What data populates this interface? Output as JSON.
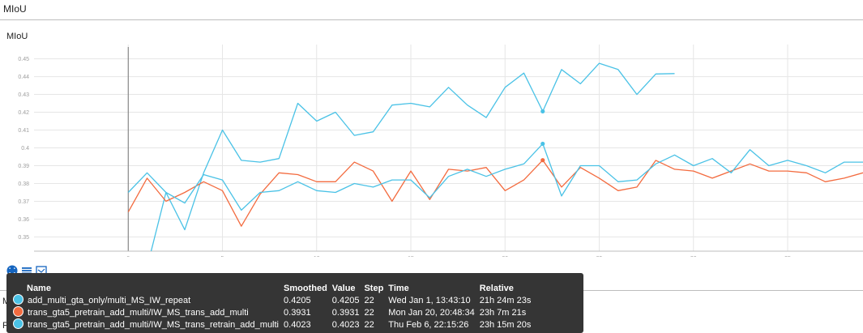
{
  "section": {
    "title": "MIoU"
  },
  "card": {
    "title": "MIoU"
  },
  "below": {
    "text_1": "M",
    "text_2": "F"
  },
  "colors": {
    "series_blue": "#4ac2e6",
    "series_orange": "#f36b3f",
    "axis_line": "#757575",
    "grid": "#e6e6e6",
    "tooltip_bg": "#353535",
    "toolbar_icon": "#1565c0"
  },
  "toolbar": {
    "icons": [
      "fit-domain-icon",
      "data-table-icon",
      "expand-chart-icon"
    ]
  },
  "tooltip": {
    "headers": {
      "name": "Name",
      "smoothed": "Smoothed",
      "value": "Value",
      "step": "Step",
      "time": "Time",
      "relative": "Relative"
    },
    "rows": [
      {
        "color": "#4ac2e6",
        "name": "add_multi_gta_only/multi_MS_IW_repeat",
        "smoothed": "0.4205",
        "value": "0.4205",
        "step": "22",
        "time": "Wed Jan 1, 13:43:10",
        "relative": "21h 24m 23s"
      },
      {
        "color": "#f36b3f",
        "name": "trans_gta5_pretrain_add_multi/IW_MS_trans_add_multi",
        "smoothed": "0.3931",
        "value": "0.3931",
        "step": "22",
        "time": "Mon Jan 20, 20:48:34",
        "relative": "23h 7m 21s"
      },
      {
        "color": "#4ac2e6",
        "name": "trans_gta5_pretrain_add_multi/IW_MS_trans_retrain_add_multi",
        "smoothed": "0.4023",
        "value": "0.4023",
        "step": "22",
        "time": "Thu Feb 6, 22:15:26",
        "relative": "23h 15m 20s"
      }
    ]
  },
  "chart_data": {
    "type": "line",
    "title": "MIoU",
    "xlim": [
      -5,
      39
    ],
    "ylim": [
      0.342,
      0.458
    ],
    "x_ticks": [
      0,
      5,
      10,
      15,
      20,
      25,
      30,
      35
    ],
    "y_ticks": [
      0.35,
      0.36,
      0.37,
      0.38,
      0.39,
      0.4,
      0.41,
      0.42,
      0.43,
      0.44,
      0.45
    ],
    "y_tick_labels": [
      "0.35",
      "0.36",
      "0.37",
      "0.38",
      "0.39",
      "0.4",
      "0.41",
      "0.42",
      "0.43",
      "0.44",
      "0.45"
    ],
    "series": [
      {
        "color": "#4ac2e6",
        "x": [
          1,
          2,
          3,
          4,
          5,
          6,
          7,
          8,
          9,
          10,
          11,
          12,
          13,
          14,
          15,
          16,
          17,
          18,
          19,
          20,
          21,
          22,
          23,
          24,
          25,
          26,
          27,
          28,
          29
        ],
        "y": [
          0.333,
          0.375,
          0.354,
          0.386,
          0.41,
          0.393,
          0.392,
          0.394,
          0.425,
          0.415,
          0.42,
          0.407,
          0.409,
          0.424,
          0.425,
          0.423,
          0.434,
          0.424,
          0.417,
          0.434,
          0.442,
          0.4205,
          0.444,
          0.436,
          0.4475,
          0.444,
          0.43,
          0.4415,
          0.4417
        ],
        "highlight_x": 22
      },
      {
        "color": "#f36b3f",
        "x": [
          0,
          1,
          2,
          3,
          4,
          5,
          6,
          7,
          8,
          9,
          10,
          11,
          12,
          13,
          14,
          15,
          16,
          17,
          18,
          19,
          20,
          21,
          22,
          23,
          24,
          25,
          26,
          27,
          28,
          29,
          30,
          31,
          32,
          33,
          34,
          35,
          36,
          37,
          38,
          39
        ],
        "y": [
          0.364,
          0.383,
          0.37,
          0.375,
          0.381,
          0.376,
          0.356,
          0.374,
          0.386,
          0.385,
          0.381,
          0.381,
          0.392,
          0.387,
          0.37,
          0.387,
          0.371,
          0.388,
          0.387,
          0.389,
          0.376,
          0.382,
          0.3931,
          0.378,
          0.389,
          0.383,
          0.376,
          0.378,
          0.393,
          0.388,
          0.387,
          0.383,
          0.387,
          0.391,
          0.387,
          0.387,
          0.386,
          0.381,
          0.383,
          0.386
        ],
        "highlight_x": 22
      },
      {
        "color": "#4ac2e6",
        "x": [
          0,
          1,
          2,
          3,
          4,
          5,
          6,
          7,
          8,
          9,
          10,
          11,
          12,
          13,
          14,
          15,
          16,
          17,
          18,
          19,
          20,
          21,
          22,
          23,
          24,
          25,
          26,
          27,
          28,
          29,
          30,
          31,
          32,
          33,
          34,
          35,
          36,
          37,
          38,
          39
        ],
        "y": [
          0.375,
          0.386,
          0.375,
          0.369,
          0.385,
          0.382,
          0.365,
          0.375,
          0.376,
          0.381,
          0.376,
          0.375,
          0.38,
          0.378,
          0.382,
          0.382,
          0.372,
          0.384,
          0.388,
          0.384,
          0.388,
          0.391,
          0.4023,
          0.373,
          0.39,
          0.39,
          0.381,
          0.382,
          0.391,
          0.396,
          0.39,
          0.394,
          0.386,
          0.399,
          0.39,
          0.393,
          0.39,
          0.386,
          0.392,
          0.392
        ],
        "highlight_x": 22
      }
    ]
  }
}
